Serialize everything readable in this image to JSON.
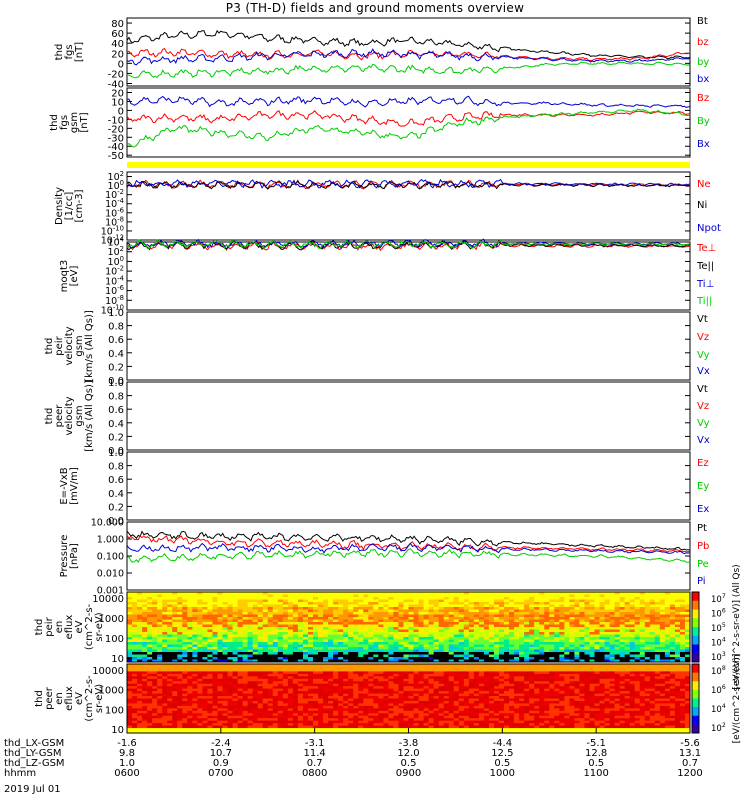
{
  "title": "P3 (TH-D) fields and ground moments overview",
  "date": "2019 Jul 01",
  "chart_data": [
    {
      "id": "fgs-mag",
      "type": "line",
      "ylabel": [
        "thd",
        "fgs",
        "[nT]"
      ],
      "ylim": [
        -45,
        90
      ],
      "yticks": [
        "80",
        "60",
        "40",
        "20",
        "0",
        "-20",
        "-40"
      ],
      "ytick_values": [
        80,
        60,
        40,
        20,
        0,
        -20,
        -40
      ],
      "series": [
        {
          "name": "Bt",
          "color": "#000000",
          "x": [
            0,
            5,
            10,
            15,
            20,
            25,
            30,
            35,
            40,
            45,
            50,
            55,
            60
          ],
          "y": [
            45,
            55,
            60,
            50,
            45,
            40,
            45,
            38,
            30,
            22,
            16,
            12,
            12
          ]
        },
        {
          "name": "bz",
          "color": "#ff0000",
          "x": [
            0,
            5,
            10,
            15,
            20,
            25,
            30,
            35,
            40,
            45,
            50,
            55,
            60
          ],
          "y": [
            20,
            22,
            18,
            16,
            20,
            15,
            18,
            18,
            14,
            10,
            8,
            10,
            22
          ]
        },
        {
          "name": "by",
          "color": "#00cc00",
          "x": [
            0,
            5,
            10,
            15,
            20,
            25,
            30,
            35,
            40,
            45,
            50,
            55,
            60
          ],
          "y": [
            -25,
            -20,
            -18,
            -15,
            -10,
            -10,
            -12,
            -15,
            -10,
            -2,
            0,
            0,
            -2
          ]
        },
        {
          "name": "bx",
          "color": "#0000cc",
          "x": [
            0,
            5,
            10,
            15,
            20,
            25,
            30,
            35,
            40,
            45,
            50,
            55,
            60
          ],
          "y": [
            5,
            8,
            10,
            15,
            18,
            20,
            18,
            15,
            12,
            8,
            5,
            5,
            10
          ]
        }
      ]
    },
    {
      "id": "fgs-gsm",
      "type": "line",
      "ylabel": [
        "thd",
        "fgs",
        "gsm",
        "[nT]"
      ],
      "ylim": [
        -52,
        25
      ],
      "yticks": [
        "20",
        "10",
        "0",
        "-10",
        "-20",
        "-30",
        "-40",
        "-50"
      ],
      "ytick_values": [
        20,
        10,
        0,
        -10,
        -20,
        -30,
        -40,
        -50
      ],
      "series": [
        {
          "name": "Bz",
          "color": "#ff0000",
          "x": [
            0,
            5,
            10,
            15,
            20,
            25,
            30,
            35,
            40,
            45,
            50,
            55,
            60
          ],
          "y": [
            -10,
            -8,
            -10,
            -5,
            -5,
            -10,
            -15,
            -8,
            -5,
            -5,
            -5,
            -2,
            -3
          ]
        },
        {
          "name": "By",
          "color": "#00cc00",
          "x": [
            0,
            5,
            10,
            15,
            20,
            25,
            30,
            35,
            40,
            45,
            50,
            55,
            60
          ],
          "y": [
            -40,
            -20,
            -25,
            -30,
            -20,
            -25,
            -30,
            -15,
            -8,
            -5,
            -2,
            0,
            -5
          ]
        },
        {
          "name": "Bx",
          "color": "#0000cc",
          "x": [
            0,
            5,
            10,
            15,
            20,
            25,
            30,
            35,
            40,
            45,
            50,
            55,
            60
          ],
          "y": [
            10,
            12,
            8,
            10,
            12,
            8,
            10,
            12,
            8,
            8,
            6,
            5,
            5
          ]
        }
      ]
    },
    {
      "id": "density",
      "type": "line",
      "log": true,
      "ylabel": [
        "Density",
        "[1/cc]",
        "[cm-3]"
      ],
      "ylim": [
        -12,
        3
      ],
      "yticks": [
        "10^2",
        "10^0",
        "10^-2",
        "10^-4",
        "10^-6",
        "10^-8",
        "10^-10",
        "10^-12"
      ],
      "ytick_values": [
        2,
        0,
        -2,
        -4,
        -6,
        -8,
        -10,
        -12
      ],
      "series": [
        {
          "name": "Ne",
          "color": "#ff0000",
          "x": [
            0,
            10,
            20,
            30,
            40,
            50,
            60
          ],
          "y": [
            0.2,
            0.3,
            0.2,
            0.3,
            0.25,
            0.2,
            0.1
          ]
        },
        {
          "name": "Ni",
          "color": "#000000",
          "x": [
            0,
            10,
            20,
            30,
            40,
            50,
            60
          ],
          "y": [
            0.1,
            0.2,
            0.1,
            0.2,
            0.15,
            0.1,
            0
          ]
        },
        {
          "name": "Npot",
          "color": "#0000cc",
          "x": [
            0,
            10,
            20,
            30,
            40,
            50,
            60
          ],
          "y": [
            0.4,
            0.5,
            0.4,
            0.5,
            0.4,
            0.3,
            0.2
          ]
        }
      ]
    },
    {
      "id": "temperature",
      "type": "line",
      "log": true,
      "ylabel": [
        "moqt3",
        "[eV]"
      ],
      "ylim": [
        -10,
        4
      ],
      "yticks": [
        "10^4",
        "10^2",
        "10^0",
        "10^-2",
        "10^-4",
        "10^-6",
        "10^-8",
        "10^-10"
      ],
      "ytick_values": [
        4,
        2,
        0,
        -2,
        -4,
        -6,
        -8,
        -10
      ],
      "series": [
        {
          "name": "Te⊥",
          "color": "#ff0000",
          "x": [
            0,
            10,
            20,
            30,
            40,
            50,
            60
          ],
          "y": [
            3.2,
            3.3,
            3.1,
            3.2,
            3.3,
            3.2,
            3.1
          ]
        },
        {
          "name": "Te||",
          "color": "#000000",
          "x": [
            0,
            10,
            20,
            30,
            40,
            50,
            60
          ],
          "y": [
            3.3,
            3.4,
            3.2,
            3.3,
            3.4,
            3.3,
            3.2
          ]
        },
        {
          "name": "Ti⊥",
          "color": "#0000cc",
          "x": [
            0,
            10,
            20,
            30,
            40,
            50,
            60
          ],
          "y": [
            3.6,
            3.6,
            3.6,
            3.7,
            3.7,
            3.7,
            3.6
          ]
        },
        {
          "name": "Ti||",
          "color": "#00cc00",
          "x": [
            0,
            10,
            20,
            30,
            40,
            50,
            60
          ],
          "y": [
            3.5,
            3.5,
            3.5,
            3.6,
            3.6,
            3.6,
            3.5
          ]
        }
      ]
    },
    {
      "id": "peir-velocity",
      "type": "line",
      "ylabel": [
        "thd",
        "peir",
        "velocity",
        "gsm",
        "[km/s (All Qs)]"
      ],
      "ylim": [
        0,
        1
      ],
      "yticks": [
        "1.0",
        "0.8",
        "0.6",
        "0.4",
        "0.2",
        "0.0"
      ],
      "ytick_values": [
        1,
        0.8,
        0.6,
        0.4,
        0.2,
        0
      ],
      "series": [
        {
          "name": "Vt",
          "color": "#000000",
          "x": [],
          "y": []
        },
        {
          "name": "Vz",
          "color": "#ff0000",
          "x": [],
          "y": []
        },
        {
          "name": "Vy",
          "color": "#00cc00",
          "x": [],
          "y": []
        },
        {
          "name": "Vx",
          "color": "#0000cc",
          "x": [],
          "y": []
        }
      ]
    },
    {
      "id": "peer-velocity",
      "type": "line",
      "ylabel": [
        "thd",
        "peer",
        "velocity",
        "gsm",
        "[km/s (All Qs)]"
      ],
      "ylim": [
        0,
        1
      ],
      "yticks": [
        "1.0",
        "0.8",
        "0.6",
        "0.4",
        "0.2",
        "0.0"
      ],
      "ytick_values": [
        1,
        0.8,
        0.6,
        0.4,
        0.2,
        0
      ],
      "series": [
        {
          "name": "Vt",
          "color": "#000000",
          "x": [],
          "y": []
        },
        {
          "name": "Vz",
          "color": "#ff0000",
          "x": [],
          "y": []
        },
        {
          "name": "Vy",
          "color": "#00cc00",
          "x": [],
          "y": []
        },
        {
          "name": "Vx",
          "color": "#0000cc",
          "x": [],
          "y": []
        }
      ]
    },
    {
      "id": "efield",
      "type": "line",
      "ylabel": [
        "E=-VxB",
        "[mV/m]"
      ],
      "ylim": [
        0,
        1
      ],
      "yticks": [
        "1.0",
        "0.8",
        "0.6",
        "0.4",
        "0.2",
        "0.0"
      ],
      "ytick_values": [
        1,
        0.8,
        0.6,
        0.4,
        0.2,
        0
      ],
      "series": [
        {
          "name": "Ez",
          "color": "#ff0000",
          "x": [],
          "y": []
        },
        {
          "name": "Ey",
          "color": "#00cc00",
          "x": [],
          "y": []
        },
        {
          "name": "Ex",
          "color": "#0000cc",
          "x": [],
          "y": []
        }
      ]
    },
    {
      "id": "pressure",
      "type": "line",
      "log": true,
      "ylabel": [
        "Pressure",
        "[nPa]"
      ],
      "ylim": [
        -3,
        1
      ],
      "yticks": [
        "10.000",
        "1.000",
        "0.100",
        "0.010",
        "0.001"
      ],
      "ytick_values": [
        1,
        0,
        -1,
        -2,
        -3
      ],
      "series": [
        {
          "name": "Pt",
          "color": "#000000",
          "x": [
            0,
            10,
            20,
            30,
            40,
            50,
            60
          ],
          "y": [
            0.25,
            0.15,
            0.1,
            0,
            -0.2,
            -0.4,
            -0.6
          ]
        },
        {
          "name": "Pb",
          "color": "#ff0000",
          "x": [
            0,
            10,
            20,
            30,
            40,
            50,
            60
          ],
          "y": [
            0.1,
            -0.2,
            -0.3,
            -0.4,
            -0.5,
            -0.6,
            -0.7
          ]
        },
        {
          "name": "Pe",
          "color": "#00cc00",
          "x": [
            0,
            10,
            20,
            30,
            40,
            50,
            60
          ],
          "y": [
            -1.2,
            -1.0,
            -0.9,
            -0.8,
            -0.9,
            -1.0,
            -1.3
          ]
        },
        {
          "name": "Pi",
          "color": "#0000cc",
          "x": [
            0,
            10,
            20,
            30,
            40,
            50,
            60
          ],
          "y": [
            -0.6,
            -0.5,
            -0.6,
            -0.5,
            -0.6,
            -0.7,
            -0.8
          ]
        }
      ]
    },
    {
      "id": "peir-eflux",
      "type": "heatmap",
      "ylabel": [
        "thd",
        "peir",
        "en",
        "eflux",
        "eV",
        "(cm^2-s-",
        "sr-eV)"
      ],
      "yticks": [
        "10000",
        "1000",
        "100",
        "10"
      ],
      "ylim_log": [
        0.8,
        4.3
      ],
      "colorbar_label": "[eV/(cm^2-s-sr-eV)] (All Qs)",
      "colorbar_ticks": [
        "10^7",
        "10^6",
        "10^5",
        "10^4",
        "10^3"
      ]
    },
    {
      "id": "peer-eflux",
      "type": "heatmap",
      "ylabel": [
        "thd",
        "peer",
        "en",
        "eflux",
        "eV",
        "(cm^2-s-",
        "sr-eV)"
      ],
      "yticks": [
        "10000",
        "1000",
        "100",
        "10"
      ],
      "ylim_log": [
        0.8,
        4.3
      ],
      "colorbar_label": "[eV/(cm^2-s-sr-eV)]",
      "colorbar_ticks": [
        "10^8",
        "10^6",
        "10^4",
        "10^2"
      ]
    }
  ],
  "xaxis": {
    "ticks": [
      "0600",
      "0700",
      "0800",
      "0900",
      "1000",
      "1100",
      "1200"
    ],
    "row_labels": [
      "thd_LX-GSM",
      "thd_LY-GSM",
      "thd_LZ-GSM",
      "hhmm"
    ],
    "rows": [
      [
        "-1.6",
        "-2.4",
        "-3.1",
        "-3.8",
        "-4.4",
        "-5.1",
        "-5.6"
      ],
      [
        "9.8",
        "10.7",
        "11.4",
        "12.0",
        "12.5",
        "12.8",
        "13.1"
      ],
      [
        "1.0",
        "0.9",
        "0.7",
        "0.5",
        "0.5",
        "0.5",
        "0.7"
      ],
      [
        "0600",
        "0700",
        "0800",
        "0900",
        "1000",
        "1100",
        "1200"
      ]
    ]
  }
}
